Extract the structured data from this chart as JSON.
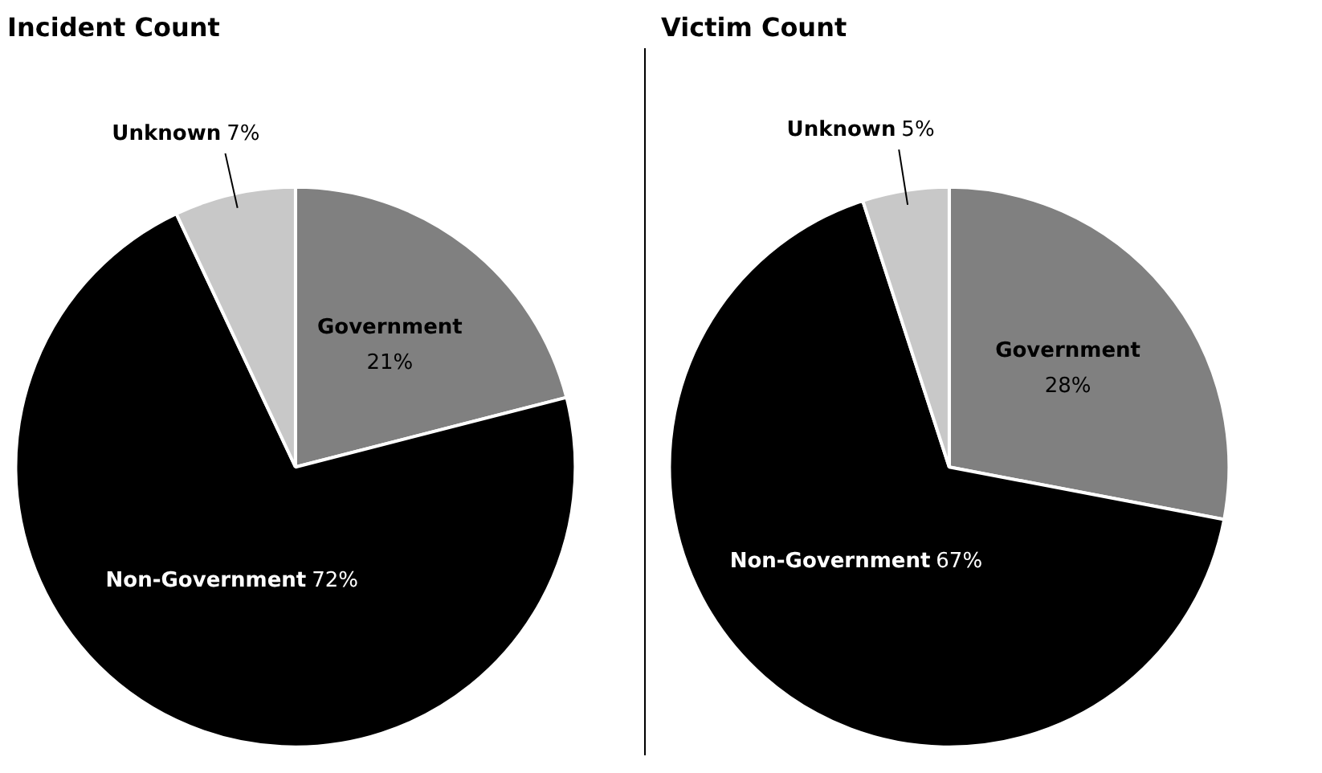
{
  "chart_data": [
    {
      "type": "pie",
      "title": "Incident Count",
      "categories": [
        "Government",
        "Non-Government",
        "Unknown"
      ],
      "values": [
        21,
        72,
        7
      ],
      "value_labels": [
        "21%",
        "72%",
        "7%"
      ],
      "colors": [
        "#808080",
        "#000000",
        "#c8c8c8"
      ],
      "legend": false
    },
    {
      "type": "pie",
      "title": "Victim Count",
      "categories": [
        "Government",
        "Non-Government",
        "Unknown"
      ],
      "values": [
        28,
        67,
        5
      ],
      "value_labels": [
        "28%",
        "67%",
        "5%"
      ],
      "colors": [
        "#808080",
        "#000000",
        "#c8c8c8"
      ],
      "legend": false
    }
  ]
}
